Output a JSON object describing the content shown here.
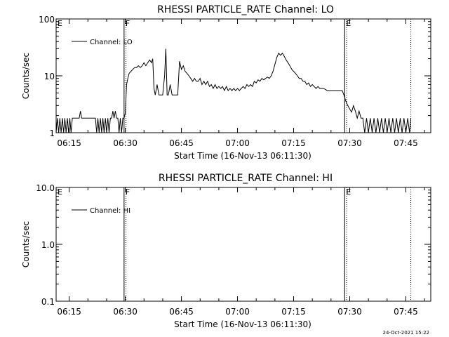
{
  "footer": {
    "timestamp": "24-Oct-2021 15:22"
  },
  "chart_data": [
    {
      "type": "line",
      "title": "RHESSI PARTICLE_RATE Channel: LO",
      "xlabel": "Start Time (16-Nov-13 06:11:30)",
      "ylabel": "Counts/sec",
      "y_scale": "log",
      "ylim": [
        1,
        100
      ],
      "xlim": [
        "06:11:30",
        "07:51:40"
      ],
      "xticks": [
        "06:15",
        "06:30",
        "06:45",
        "07:00",
        "07:15",
        "07:30",
        "07:45"
      ],
      "yticks": [
        "1",
        "10",
        "100"
      ],
      "legend": {
        "entries": [
          "Channel: LO"
        ],
        "placement": "top-left"
      },
      "annotations": [
        {
          "text": "E",
          "x": "06:11:30",
          "line": "none"
        },
        {
          "text": "F",
          "x": "06:29:40",
          "line": "solid"
        },
        {
          "text": "E",
          "x": "07:28:40",
          "line": "solid"
        },
        {
          "text": "",
          "x": "07:29:10",
          "line": "dotted"
        },
        {
          "text": "",
          "x": "06:30:10",
          "line": "dotted"
        },
        {
          "text": "",
          "x": "07:46:20",
          "line": "dotted"
        }
      ],
      "series": [
        {
          "name": "Channel: LO",
          "color": "#000000",
          "points": [
            [
              "06:11:30",
              1
            ],
            [
              "06:11:50",
              1.8
            ],
            [
              "06:12:10",
              1
            ],
            [
              "06:12:30",
              1.8
            ],
            [
              "06:12:50",
              1
            ],
            [
              "06:13:10",
              1.8
            ],
            [
              "06:13:30",
              1
            ],
            [
              "06:13:50",
              1.8
            ],
            [
              "06:14:10",
              1
            ],
            [
              "06:14:30",
              1.8
            ],
            [
              "06:14:50",
              1
            ],
            [
              "06:15:10",
              1.8
            ],
            [
              "06:15:30",
              1
            ],
            [
              "06:15:50",
              1.8
            ],
            [
              "06:16:30",
              1.8
            ],
            [
              "06:17:10",
              1.8
            ],
            [
              "06:17:40",
              1.8
            ],
            [
              "06:18:00",
              2.4
            ],
            [
              "06:18:20",
              1.8
            ],
            [
              "06:19:00",
              1.8
            ],
            [
              "06:20:00",
              1.8
            ],
            [
              "06:21:00",
              1.8
            ],
            [
              "06:22:00",
              1.8
            ],
            [
              "06:22:20",
              1
            ],
            [
              "06:22:40",
              1.8
            ],
            [
              "06:23:00",
              1
            ],
            [
              "06:23:20",
              1.8
            ],
            [
              "06:23:40",
              1
            ],
            [
              "06:24:00",
              1.8
            ],
            [
              "06:24:20",
              1
            ],
            [
              "06:24:40",
              1.8
            ],
            [
              "06:25:00",
              1
            ],
            [
              "06:25:20",
              1.8
            ],
            [
              "06:25:40",
              1
            ],
            [
              "06:26:00",
              1.8
            ],
            [
              "06:26:20",
              1.8
            ],
            [
              "06:26:40",
              2.4
            ],
            [
              "06:27:00",
              1.8
            ],
            [
              "06:27:20",
              2.4
            ],
            [
              "06:27:40",
              1.8
            ],
            [
              "06:28:00",
              1.8
            ],
            [
              "06:28:20",
              1
            ],
            [
              "06:28:40",
              1.8
            ],
            [
              "06:29:00",
              1
            ],
            [
              "06:29:20",
              1.8
            ],
            [
              "06:29:40",
              1.8
            ],
            [
              "06:30:00",
              2.2
            ],
            [
              "06:30:20",
              7
            ],
            [
              "06:30:40",
              9
            ],
            [
              "06:31:00",
              11
            ],
            [
              "06:31:30",
              12
            ],
            [
              "06:32:00",
              13
            ],
            [
              "06:32:30",
              14
            ],
            [
              "06:33:00",
              14
            ],
            [
              "06:33:30",
              15
            ],
            [
              "06:34:00",
              14
            ],
            [
              "06:34:30",
              15
            ],
            [
              "06:35:00",
              17
            ],
            [
              "06:35:30",
              15
            ],
            [
              "06:36:00",
              17
            ],
            [
              "06:36:30",
              19
            ],
            [
              "06:37:00",
              17
            ],
            [
              "06:37:20",
              20
            ],
            [
              "06:37:40",
              6
            ],
            [
              "06:38:00",
              4.6
            ],
            [
              "06:38:30",
              7
            ],
            [
              "06:39:00",
              4.6
            ],
            [
              "06:39:30",
              4.6
            ],
            [
              "06:40:00",
              4.6
            ],
            [
              "06:40:30",
              10
            ],
            [
              "06:40:50",
              30
            ],
            [
              "06:41:10",
              4.6
            ],
            [
              "06:41:30",
              4.6
            ],
            [
              "06:42:00",
              7
            ],
            [
              "06:42:30",
              4.6
            ],
            [
              "06:43:00",
              4.6
            ],
            [
              "06:43:30",
              4.6
            ],
            [
              "06:44:00",
              4.6
            ],
            [
              "06:44:30",
              18
            ],
            [
              "06:45:00",
              13
            ],
            [
              "06:45:30",
              15
            ],
            [
              "06:46:00",
              12
            ],
            [
              "06:46:30",
              11
            ],
            [
              "06:47:00",
              10
            ],
            [
              "06:47:30",
              9
            ],
            [
              "06:48:00",
              8
            ],
            [
              "06:48:30",
              9
            ],
            [
              "06:49:00",
              8
            ],
            [
              "06:49:30",
              8
            ],
            [
              "06:50:00",
              9
            ],
            [
              "06:50:30",
              7
            ],
            [
              "06:51:00",
              8
            ],
            [
              "06:51:30",
              7
            ],
            [
              "06:52:00",
              8
            ],
            [
              "06:52:30",
              6.5
            ],
            [
              "06:53:00",
              7
            ],
            [
              "06:53:30",
              6
            ],
            [
              "06:54:00",
              7
            ],
            [
              "06:54:30",
              6
            ],
            [
              "06:55:00",
              6.5
            ],
            [
              "06:55:30",
              6
            ],
            [
              "06:56:00",
              6.5
            ],
            [
              "06:56:30",
              5.5
            ],
            [
              "06:57:00",
              6.5
            ],
            [
              "06:57:30",
              5.5
            ],
            [
              "06:58:00",
              6
            ],
            [
              "06:58:30",
              5.5
            ],
            [
              "06:59:00",
              6
            ],
            [
              "06:59:30",
              5.5
            ],
            [
              "07:00:00",
              6
            ],
            [
              "07:00:30",
              5.5
            ],
            [
              "07:01:00",
              6
            ],
            [
              "07:01:30",
              6.5
            ],
            [
              "07:02:00",
              6
            ],
            [
              "07:02:30",
              7
            ],
            [
              "07:03:00",
              6.5
            ],
            [
              "07:03:30",
              7
            ],
            [
              "07:04:00",
              6.5
            ],
            [
              "07:04:30",
              8
            ],
            [
              "07:05:00",
              7.5
            ],
            [
              "07:05:30",
              8.5
            ],
            [
              "07:06:00",
              8
            ],
            [
              "07:06:30",
              9
            ],
            [
              "07:07:00",
              8.5
            ],
            [
              "07:07:30",
              9
            ],
            [
              "07:08:00",
              9.5
            ],
            [
              "07:08:30",
              9
            ],
            [
              "07:09:00",
              10
            ],
            [
              "07:09:30",
              12
            ],
            [
              "07:10:00",
              16
            ],
            [
              "07:10:30",
              21
            ],
            [
              "07:11:00",
              25
            ],
            [
              "07:11:30",
              23
            ],
            [
              "07:12:00",
              25
            ],
            [
              "07:12:30",
              22
            ],
            [
              "07:13:00",
              19
            ],
            [
              "07:13:30",
              17
            ],
            [
              "07:14:00",
              15
            ],
            [
              "07:14:30",
              13
            ],
            [
              "07:15:00",
              12
            ],
            [
              "07:15:30",
              11
            ],
            [
              "07:16:00",
              10
            ],
            [
              "07:16:30",
              9
            ],
            [
              "07:17:00",
              9
            ],
            [
              "07:17:30",
              8
            ],
            [
              "07:18:00",
              8
            ],
            [
              "07:18:30",
              7
            ],
            [
              "07:19:00",
              7.5
            ],
            [
              "07:19:30",
              6.5
            ],
            [
              "07:20:00",
              7
            ],
            [
              "07:20:30",
              6.5
            ],
            [
              "07:21:00",
              6
            ],
            [
              "07:21:30",
              6.5
            ],
            [
              "07:22:00",
              6
            ],
            [
              "07:23:00",
              6
            ],
            [
              "07:24:00",
              5.5
            ],
            [
              "07:25:00",
              5.5
            ],
            [
              "07:26:00",
              5.5
            ],
            [
              "07:27:00",
              5.5
            ],
            [
              "07:28:00",
              5.5
            ],
            [
              "07:28:30",
              4.5
            ],
            [
              "07:29:00",
              3.5
            ],
            [
              "07:29:30",
              3
            ],
            [
              "07:30:00",
              2.6
            ],
            [
              "07:30:30",
              2.3
            ],
            [
              "07:31:00",
              3
            ],
            [
              "07:31:30",
              2.4
            ],
            [
              "07:32:00",
              1.8
            ],
            [
              "07:32:30",
              2.4
            ],
            [
              "07:33:00",
              1.8
            ],
            [
              "07:33:30",
              1.8
            ],
            [
              "07:34:00",
              1
            ],
            [
              "07:34:30",
              1.8
            ],
            [
              "07:35:00",
              1
            ],
            [
              "07:35:30",
              1.8
            ],
            [
              "07:36:00",
              1
            ],
            [
              "07:36:30",
              1.8
            ],
            [
              "07:37:00",
              1
            ],
            [
              "07:37:30",
              1.8
            ],
            [
              "07:38:00",
              1
            ],
            [
              "07:38:30",
              1.8
            ],
            [
              "07:39:00",
              1
            ],
            [
              "07:39:30",
              1.8
            ],
            [
              "07:40:00",
              1
            ],
            [
              "07:40:30",
              1.8
            ],
            [
              "07:41:00",
              1
            ],
            [
              "07:41:30",
              1.8
            ],
            [
              "07:42:00",
              1
            ],
            [
              "07:42:30",
              1.8
            ],
            [
              "07:43:00",
              1
            ],
            [
              "07:43:30",
              1.8
            ],
            [
              "07:44:00",
              1
            ],
            [
              "07:44:30",
              1.8
            ],
            [
              "07:45:00",
              1
            ],
            [
              "07:45:30",
              1.8
            ],
            [
              "07:46:00",
              1
            ],
            [
              "07:46:20",
              1.8
            ]
          ]
        }
      ]
    },
    {
      "type": "line",
      "title": "RHESSI PARTICLE_RATE Channel: HI",
      "xlabel": "Start Time (16-Nov-13 06:11:30)",
      "ylabel": "Counts/sec",
      "y_scale": "log",
      "ylim": [
        0.1,
        10.0
      ],
      "xlim": [
        "06:11:30",
        "07:51:40"
      ],
      "xticks": [
        "06:15",
        "06:30",
        "06:45",
        "07:00",
        "07:15",
        "07:30",
        "07:45"
      ],
      "yticks": [
        "0.1",
        "1.0",
        "10.0"
      ],
      "legend": {
        "entries": [
          "Channel: HI"
        ],
        "placement": "top-left"
      },
      "annotations": [
        {
          "text": "E",
          "x": "06:11:30",
          "line": "none"
        },
        {
          "text": "F",
          "x": "06:29:40",
          "line": "solid"
        },
        {
          "text": "E",
          "x": "07:28:40",
          "line": "solid"
        },
        {
          "text": "",
          "x": "07:29:10",
          "line": "dotted"
        },
        {
          "text": "",
          "x": "06:30:10",
          "line": "dotted"
        },
        {
          "text": "",
          "x": "07:46:20",
          "line": "dotted"
        }
      ],
      "series": [
        {
          "name": "Channel: HI",
          "color": "#000000",
          "points": []
        }
      ]
    }
  ]
}
